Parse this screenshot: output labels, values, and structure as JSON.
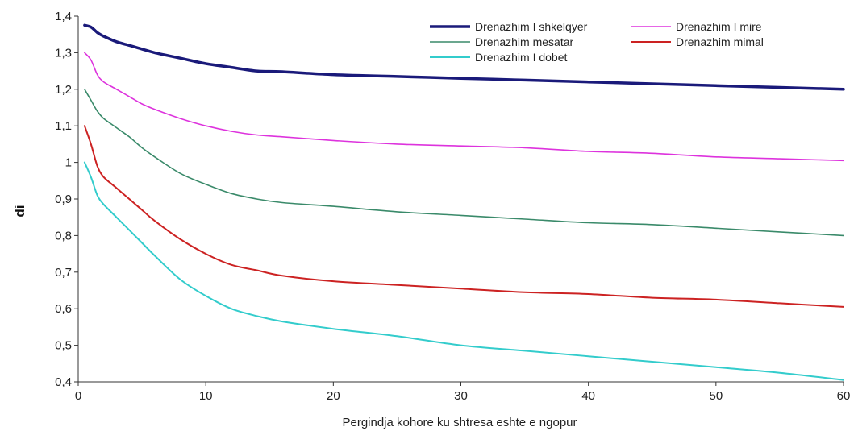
{
  "chart_data": {
    "type": "line",
    "xlabel": "Pergindja kohore ku shtresa eshte e ngopur",
    "ylabel": "di",
    "xlim": [
      0,
      60
    ],
    "ylim": [
      0.4,
      1.4
    ],
    "x_ticks": [
      "0",
      "10",
      "20",
      "30",
      "40",
      "50",
      "60"
    ],
    "y_ticks": [
      "0,4",
      "0,5",
      "0,6",
      "0,7",
      "0,8",
      "0,9",
      "1",
      "1,1",
      "1,2",
      "1,3",
      "1,4"
    ],
    "grid": false,
    "legend_position": "top-right",
    "series": [
      {
        "name": "Drenazhim I shkelqyer",
        "color": "#1a1a7a",
        "width": 3.5,
        "x": [
          0.5,
          1,
          1.5,
          2,
          3,
          4,
          5,
          6,
          8,
          10,
          12,
          14,
          16,
          20,
          25,
          30,
          35,
          40,
          45,
          50,
          55,
          60
        ],
        "y": [
          1.375,
          1.37,
          1.355,
          1.345,
          1.33,
          1.32,
          1.31,
          1.3,
          1.285,
          1.27,
          1.26,
          1.25,
          1.248,
          1.24,
          1.235,
          1.23,
          1.225,
          1.22,
          1.215,
          1.21,
          1.205,
          1.2
        ]
      },
      {
        "name": "Drenazhim I mire",
        "color": "#dd33dd",
        "width": 1.6,
        "x": [
          0.5,
          1,
          1.5,
          2,
          3,
          4,
          5,
          6,
          8,
          10,
          12,
          14,
          16,
          20,
          25,
          30,
          35,
          40,
          45,
          50,
          55,
          60
        ],
        "y": [
          1.3,
          1.28,
          1.24,
          1.22,
          1.2,
          1.18,
          1.16,
          1.145,
          1.12,
          1.1,
          1.085,
          1.075,
          1.07,
          1.06,
          1.05,
          1.045,
          1.04,
          1.03,
          1.025,
          1.015,
          1.01,
          1.005
        ]
      },
      {
        "name": "Drenazhim mesatar",
        "color": "#3a8a6a",
        "width": 1.6,
        "x": [
          0.5,
          1,
          1.5,
          2,
          3,
          4,
          5,
          6,
          8,
          10,
          12,
          14,
          16,
          20,
          25,
          30,
          35,
          40,
          45,
          50,
          55,
          60
        ],
        "y": [
          1.2,
          1.17,
          1.14,
          1.12,
          1.095,
          1.07,
          1.04,
          1.015,
          0.97,
          0.94,
          0.915,
          0.9,
          0.89,
          0.88,
          0.865,
          0.855,
          0.845,
          0.835,
          0.83,
          0.82,
          0.81,
          0.8
        ]
      },
      {
        "name": "Drenazhim mimal",
        "color": "#cc2222",
        "width": 2,
        "x": [
          0.5,
          1,
          1.5,
          2,
          3,
          4,
          5,
          6,
          8,
          10,
          12,
          14,
          16,
          20,
          25,
          30,
          35,
          40,
          45,
          50,
          55,
          60
        ],
        "y": [
          1.1,
          1.05,
          0.99,
          0.96,
          0.93,
          0.9,
          0.87,
          0.84,
          0.79,
          0.75,
          0.72,
          0.705,
          0.69,
          0.675,
          0.665,
          0.655,
          0.645,
          0.64,
          0.63,
          0.625,
          0.615,
          0.605
        ]
      },
      {
        "name": "Drenazhim I dobet",
        "color": "#33cccc",
        "width": 2,
        "x": [
          0.5,
          1,
          1.5,
          2,
          3,
          4,
          5,
          6,
          8,
          10,
          12,
          14,
          16,
          20,
          25,
          30,
          35,
          40,
          45,
          50,
          55,
          60
        ],
        "y": [
          1.0,
          0.96,
          0.91,
          0.885,
          0.85,
          0.815,
          0.78,
          0.745,
          0.68,
          0.635,
          0.6,
          0.58,
          0.565,
          0.545,
          0.525,
          0.5,
          0.485,
          0.47,
          0.455,
          0.44,
          0.425,
          0.405
        ]
      }
    ],
    "legend": {
      "rows": [
        [
          "Drenazhim I shkelqyer",
          "Drenazhim I mire"
        ],
        [
          "Drenazhim mesatar",
          "Drenazhim mimal"
        ],
        [
          "Drenazhim I dobet"
        ]
      ]
    }
  }
}
